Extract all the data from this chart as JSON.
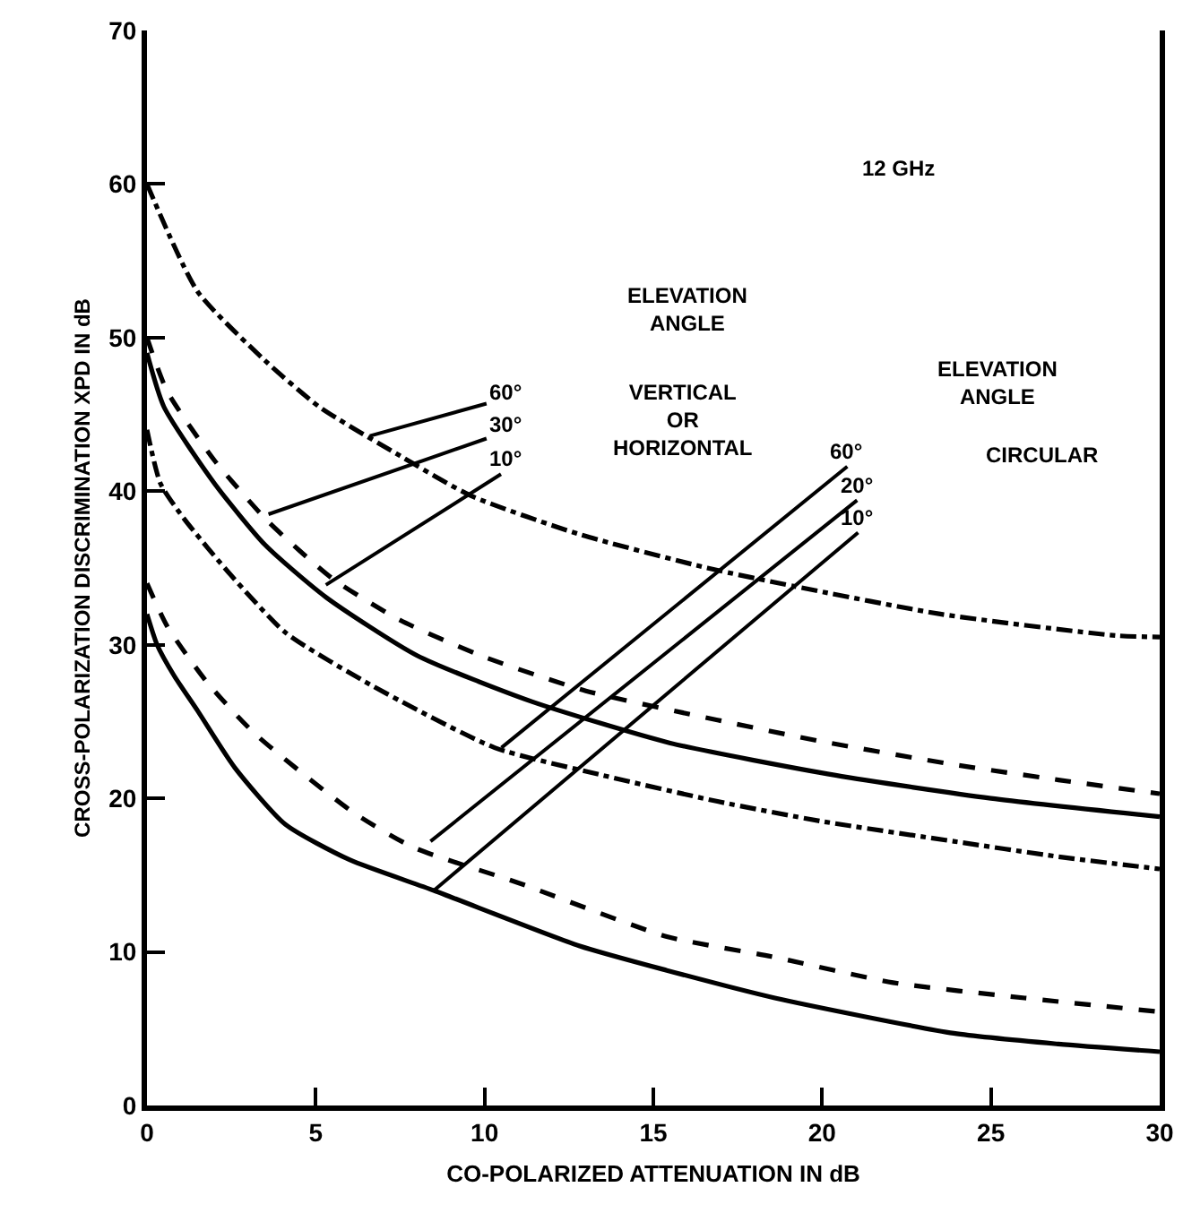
{
  "chart_data": {
    "type": "line",
    "xlabel": "CO-POLARIZED ATTENUATION IN dB",
    "ylabel": "CROSS-POLARIZATION DISCRIMINATION XPD IN dB",
    "xlim": [
      0,
      30
    ],
    "xticks": [
      0,
      5,
      10,
      15,
      20,
      25,
      30
    ],
    "ylim": [
      0,
      70
    ],
    "yticks": [
      0,
      10,
      20,
      30,
      40,
      50,
      60,
      70
    ],
    "grid": false,
    "marker": "none",
    "series": [
      {
        "color": "#000000",
        "line_style": "dashdot",
        "x": [
          0,
          1.5,
          3.5,
          5.1,
          7.5,
          9.6,
          12.8,
          16.6,
          19.2,
          23.5,
          28.7,
          30
        ],
        "values": [
          60,
          53,
          48.5,
          45.5,
          42.3,
          39.7,
          37.2,
          35,
          33.8,
          32,
          30.6,
          30.5
        ]
      },
      {
        "color": "#000000",
        "line_style": "dashed",
        "x": [
          0,
          0.6,
          2,
          3.6,
          5.5,
          7.5,
          10,
          13,
          16.9,
          20,
          23.9,
          27,
          30
        ],
        "values": [
          50,
          46.5,
          42,
          38,
          34.3,
          31.6,
          29.2,
          27,
          25.1,
          23.7,
          22.2,
          21.2,
          20.3
        ]
      },
      {
        "color": "#000000",
        "line_style": "solid",
        "x": [
          0,
          0.5,
          2,
          3.5,
          5.3,
          8,
          11.4,
          15.5,
          20.4,
          25,
          30
        ],
        "values": [
          49,
          45.5,
          40.5,
          36.5,
          33.1,
          29.3,
          26.3,
          23.6,
          21.5,
          20,
          18.8
        ]
      },
      {
        "color": "#000000",
        "line_style": "dashdot",
        "x": [
          0,
          0.4,
          1.1,
          2.5,
          4.1,
          6.7,
          10.3,
          13.5,
          16.9,
          20,
          23.9,
          27,
          30
        ],
        "values": [
          44,
          40.5,
          38.2,
          34.5,
          30.8,
          27.3,
          23.3,
          21.5,
          19.8,
          18.5,
          17.2,
          16.2,
          15.4
        ]
      },
      {
        "color": "#000000",
        "line_style": "dashed",
        "x": [
          0,
          0.6,
          1.8,
          3.2,
          6.1,
          7.9,
          11,
          15.4,
          18.5,
          22.1,
          26,
          30
        ],
        "values": [
          34,
          31.2,
          27.5,
          24.2,
          19.1,
          16.8,
          14.5,
          11,
          9.7,
          8,
          7,
          6.1
        ]
      },
      {
        "color": "#000000",
        "line_style": "solid",
        "x": [
          0,
          0.3,
          0.8,
          1.5,
          2.6,
          4.1,
          6,
          8.5,
          12.8,
          15.4,
          18.6,
          23.9,
          27,
          30
        ],
        "values": [
          32,
          30,
          28,
          25.7,
          22,
          18.3,
          16,
          14,
          10.4,
          8.8,
          7,
          4.7,
          4,
          3.5
        ]
      }
    ],
    "annotations": [
      "12 GHz",
      "ELEVATION\nANGLE",
      "VERTICAL\nOR\nHORIZONTAL",
      "ELEVATION\nANGLE",
      "CIRCULAR",
      {
        "text": "60°",
        "x": 6.6,
        "y": 43.6
      },
      {
        "text": "30°",
        "x": 3.6,
        "y": 38.5
      },
      {
        "text": "10°",
        "x": 5.3,
        "y": 33.9
      },
      {
        "text": "60°",
        "x": 10.5,
        "y": 23.3
      },
      {
        "text": "20°",
        "x": 8.4,
        "y": 17.2
      },
      {
        "text": "10°",
        "x": 8.5,
        "y": 14
      }
    ]
  }
}
